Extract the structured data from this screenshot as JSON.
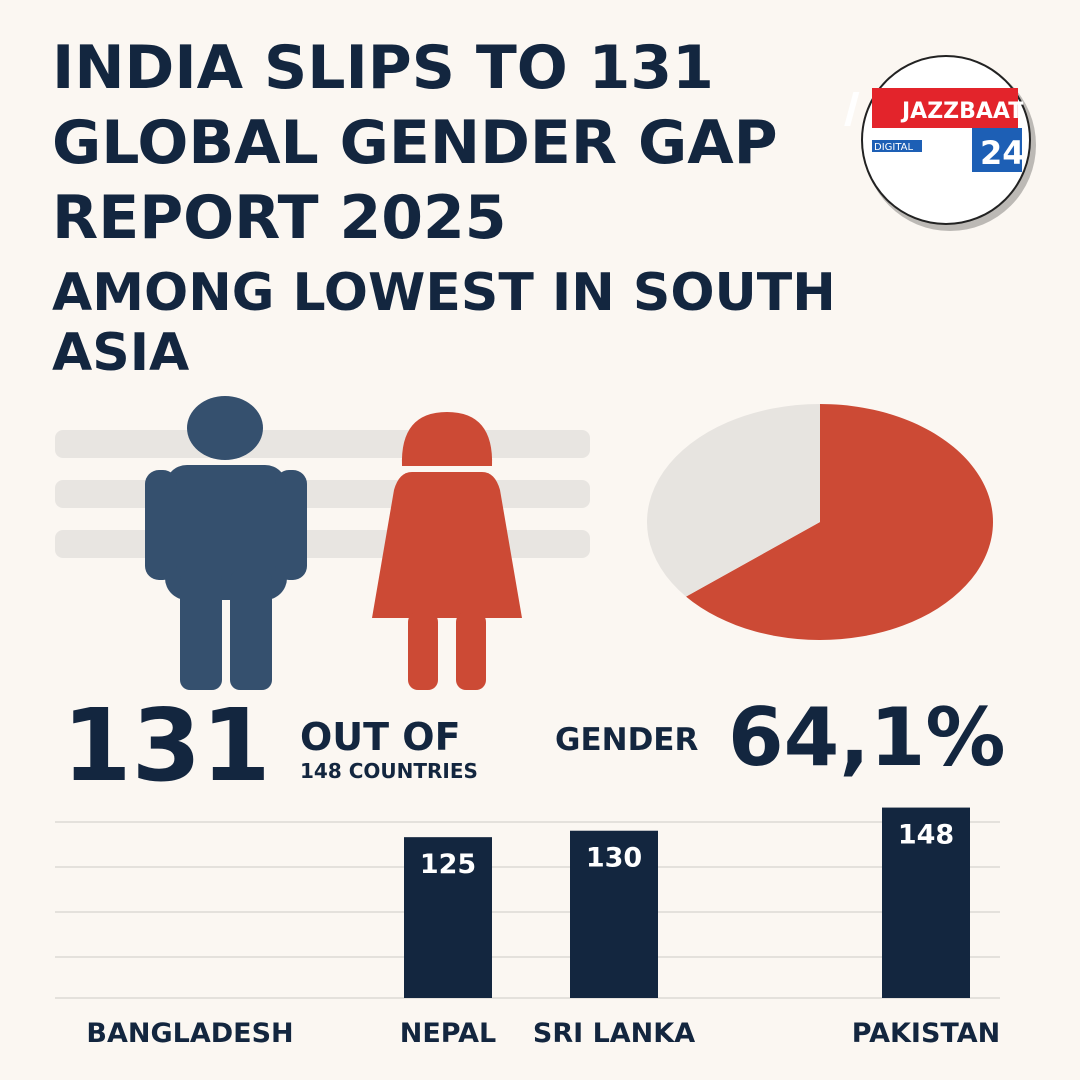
{
  "header": {
    "title": [
      "INDIA SLIPS TO 131",
      "GLOBAL GENDER GAP",
      "REPORT 2025"
    ],
    "subtitle": [
      "AMONG LOWEST IN SOUTH",
      "ASIA"
    ]
  },
  "logo": {
    "name": "JAZZBAAT",
    "tag": "DIGITAL",
    "number": "24"
  },
  "stats": {
    "rank": "131",
    "out_of": "OUT OF",
    "total": "148 COUNTRIES",
    "gender": "GENDER"
  },
  "chart_data": [
    {
      "type": "pie",
      "values": [
        64.1,
        35.9
      ],
      "value_labels": [
        "64,1%",
        null
      ],
      "colors": [
        "#cc4a35",
        "#e7e4e0"
      ]
    },
    {
      "type": "bar",
      "categories": [
        "BANGLADESH",
        "NEPAL",
        "SRI LANKA",
        "PAKISTAN"
      ],
      "values": [
        null,
        125,
        130,
        148
      ],
      "color": "#13263f",
      "ylim": [
        0,
        150
      ]
    }
  ]
}
